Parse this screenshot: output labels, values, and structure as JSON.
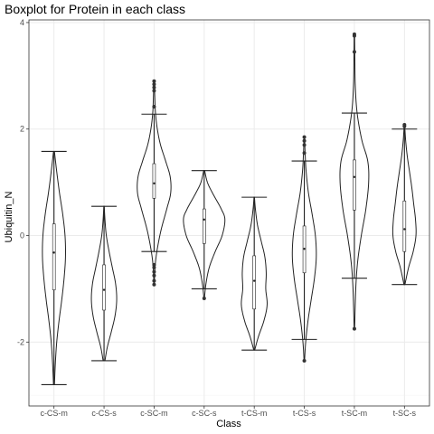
{
  "chart_data": {
    "type": "violin",
    "title": "Boxplot for Protein in each class",
    "xlabel": "Class",
    "ylabel": "Ubiquitin_N",
    "ylim": [
      -3.2,
      4.05
    ],
    "yticks": [
      -2,
      0,
      2,
      4
    ],
    "grid": true,
    "categories": [
      "c-CS-m",
      "c-CS-s",
      "c-SC-m",
      "c-SC-s",
      "t-CS-m",
      "t-CS-s",
      "t-SC-m",
      "t-SC-s"
    ],
    "groups": [
      {
        "name": "c-CS-m",
        "min": -2.8,
        "max": 1.58,
        "q1": -1.02,
        "median": -0.32,
        "q3": 0.22,
        "whisker_low": -2.8,
        "whisker_high": 1.58,
        "outliers": [],
        "density": [
          [
            -2.8,
            0.02
          ],
          [
            -2.4,
            0.06
          ],
          [
            -2.0,
            0.12
          ],
          [
            -1.6,
            0.22
          ],
          [
            -1.2,
            0.34
          ],
          [
            -0.8,
            0.44
          ],
          [
            -0.4,
            0.5
          ],
          [
            0.0,
            0.48
          ],
          [
            0.4,
            0.38
          ],
          [
            0.8,
            0.24
          ],
          [
            1.2,
            0.12
          ],
          [
            1.58,
            0.02
          ]
        ]
      },
      {
        "name": "c-CS-s",
        "min": -2.35,
        "max": 0.55,
        "q1": -1.4,
        "median": -1.02,
        "q3": -0.55,
        "whisker_low": -2.35,
        "whisker_high": 0.55,
        "outliers": [],
        "density": [
          [
            -2.35,
            0.04
          ],
          [
            -2.1,
            0.14
          ],
          [
            -1.8,
            0.32
          ],
          [
            -1.5,
            0.48
          ],
          [
            -1.2,
            0.55
          ],
          [
            -0.9,
            0.5
          ],
          [
            -0.6,
            0.36
          ],
          [
            -0.3,
            0.22
          ],
          [
            0.0,
            0.1
          ],
          [
            0.3,
            0.04
          ],
          [
            0.55,
            0.01
          ]
        ]
      },
      {
        "name": "c-SC-m",
        "min": -0.92,
        "max": 2.9,
        "q1": 0.7,
        "median": 0.98,
        "q3": 1.35,
        "whisker_low": -0.3,
        "whisker_high": 2.28,
        "outliers": [
          -0.92,
          -0.85,
          -0.75,
          -0.68,
          -0.6,
          -0.55,
          2.42,
          2.72,
          2.78,
          2.84,
          2.9
        ],
        "density": [
          [
            -0.92,
            0.01
          ],
          [
            -0.6,
            0.04
          ],
          [
            -0.3,
            0.12
          ],
          [
            0.1,
            0.3
          ],
          [
            0.5,
            0.55
          ],
          [
            0.8,
            0.72
          ],
          [
            1.1,
            0.7
          ],
          [
            1.4,
            0.5
          ],
          [
            1.7,
            0.28
          ],
          [
            2.0,
            0.14
          ],
          [
            2.3,
            0.06
          ],
          [
            2.6,
            0.03
          ],
          [
            2.9,
            0.01
          ]
        ]
      },
      {
        "name": "c-SC-s",
        "min": -1.18,
        "max": 1.22,
        "q1": -0.15,
        "median": 0.3,
        "q3": 0.5,
        "whisker_low": -1.0,
        "whisker_high": 1.22,
        "outliers": [
          -1.18
        ],
        "density": [
          [
            -1.18,
            0.01
          ],
          [
            -0.9,
            0.08
          ],
          [
            -0.6,
            0.22
          ],
          [
            -0.3,
            0.48
          ],
          [
            0.0,
            0.78
          ],
          [
            0.3,
            0.9
          ],
          [
            0.5,
            0.74
          ],
          [
            0.8,
            0.36
          ],
          [
            1.0,
            0.14
          ],
          [
            1.22,
            0.02
          ]
        ]
      },
      {
        "name": "t-CS-m",
        "min": -2.15,
        "max": 0.72,
        "q1": -1.38,
        "median": -0.85,
        "q3": -0.38,
        "whisker_low": -2.15,
        "whisker_high": 0.72,
        "outliers": [],
        "density": [
          [
            -2.15,
            0.02
          ],
          [
            -1.9,
            0.18
          ],
          [
            -1.6,
            0.42
          ],
          [
            -1.3,
            0.56
          ],
          [
            -1.0,
            0.5
          ],
          [
            -0.7,
            0.52
          ],
          [
            -0.4,
            0.46
          ],
          [
            -0.1,
            0.3
          ],
          [
            0.2,
            0.14
          ],
          [
            0.5,
            0.05
          ],
          [
            0.72,
            0.01
          ]
        ]
      },
      {
        "name": "t-CS-s",
        "min": -2.35,
        "max": 1.85,
        "q1": -0.7,
        "median": -0.25,
        "q3": 0.18,
        "whisker_low": -1.95,
        "whisker_high": 1.4,
        "outliers": [
          -2.35,
          1.55,
          1.7,
          1.78,
          1.85
        ],
        "density": [
          [
            -2.35,
            0.01
          ],
          [
            -2.0,
            0.06
          ],
          [
            -1.6,
            0.16
          ],
          [
            -1.2,
            0.3
          ],
          [
            -0.8,
            0.44
          ],
          [
            -0.4,
            0.52
          ],
          [
            0.0,
            0.48
          ],
          [
            0.4,
            0.34
          ],
          [
            0.8,
            0.18
          ],
          [
            1.2,
            0.08
          ],
          [
            1.5,
            0.04
          ],
          [
            1.85,
            0.01
          ]
        ]
      },
      {
        "name": "t-SC-m",
        "min": -1.75,
        "max": 3.78,
        "q1": 0.48,
        "median": 1.1,
        "q3": 1.42,
        "whisker_low": -0.8,
        "whisker_high": 2.3,
        "outliers": [
          -1.75,
          3.45,
          3.75,
          3.78
        ],
        "density": [
          [
            -1.75,
            0.01
          ],
          [
            -1.0,
            0.06
          ],
          [
            -0.5,
            0.14
          ],
          [
            0.0,
            0.3
          ],
          [
            0.5,
            0.5
          ],
          [
            1.0,
            0.62
          ],
          [
            1.4,
            0.58
          ],
          [
            1.8,
            0.32
          ],
          [
            2.3,
            0.12
          ],
          [
            2.8,
            0.04
          ],
          [
            3.3,
            0.02
          ],
          [
            3.78,
            0.01
          ]
        ]
      },
      {
        "name": "t-SC-s",
        "min": -0.92,
        "max": 2.08,
        "q1": -0.3,
        "median": 0.12,
        "q3": 0.65,
        "whisker_low": -0.92,
        "whisker_high": 2.0,
        "outliers": [
          2.05,
          2.08
        ],
        "density": [
          [
            -0.92,
            0.02
          ],
          [
            -0.6,
            0.18
          ],
          [
            -0.3,
            0.38
          ],
          [
            0.0,
            0.5
          ],
          [
            0.3,
            0.48
          ],
          [
            0.6,
            0.4
          ],
          [
            0.9,
            0.32
          ],
          [
            1.2,
            0.22
          ],
          [
            1.5,
            0.12
          ],
          [
            1.8,
            0.05
          ],
          [
            2.08,
            0.01
          ]
        ]
      }
    ]
  }
}
